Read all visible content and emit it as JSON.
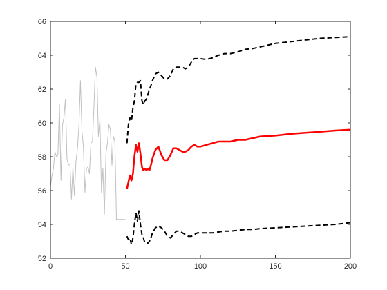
{
  "chart_data": {
    "type": "line",
    "title": "",
    "xlabel": "",
    "ylabel": "",
    "xlim": [
      0,
      200
    ],
    "ylim": [
      52,
      66
    ],
    "xticks": [
      0,
      50,
      100,
      150,
      200
    ],
    "yticks": [
      52,
      54,
      56,
      58,
      60,
      62,
      64,
      66
    ],
    "xtick_labels": [
      "0",
      "50",
      "100",
      "150",
      "200"
    ],
    "ytick_labels": [
      "52",
      "54",
      "56",
      "58",
      "60",
      "62",
      "64",
      "66"
    ],
    "grid": false,
    "legend": "none",
    "series": [
      {
        "role": "observed",
        "color": "#c0c0c0",
        "style": "solid",
        "x": [
          0,
          1,
          2,
          3,
          4,
          5,
          6,
          7,
          8,
          9,
          10,
          11,
          12,
          13,
          14,
          15,
          16,
          17,
          18,
          19,
          20,
          21,
          22,
          23,
          24,
          25,
          26,
          27,
          28,
          29,
          30,
          31,
          32,
          33,
          34,
          35,
          36,
          37,
          38,
          39,
          40,
          41,
          42,
          43,
          44,
          45,
          46,
          47,
          48,
          49,
          50
        ],
        "y": [
          56.2,
          56.9,
          57.3,
          58.3,
          58.0,
          58.1,
          61.1,
          56.6,
          59.9,
          60.3,
          61.4,
          57.9,
          57.5,
          57.6,
          55.5,
          57.4,
          55.7,
          57.7,
          58.5,
          59.8,
          62.5,
          59.5,
          58.6,
          55.9,
          57.3,
          57.4,
          57.0,
          58.8,
          58.9,
          60.9,
          63.3,
          62.7,
          59.2,
          60.2,
          55.9,
          57.3,
          54.6,
          58.2,
          58.8,
          59.9,
          59.6,
          57.5,
          59.2,
          58.9,
          54.3,
          54.3,
          54.3,
          54.3,
          54.3,
          54.3,
          54.3
        ]
      },
      {
        "role": "forecast",
        "color": "#ff0000",
        "style": "solid",
        "x": [
          51,
          52,
          53,
          54,
          55,
          56,
          57,
          58,
          59,
          60,
          61,
          62,
          63,
          64,
          65,
          66,
          67,
          68,
          70,
          72,
          74,
          76,
          78,
          80,
          82,
          84,
          86,
          88,
          90,
          92,
          94,
          96,
          98,
          100,
          104,
          108,
          112,
          116,
          120,
          125,
          130,
          135,
          140,
          150,
          160,
          170,
          180,
          190,
          200
        ],
        "y": [
          56.1,
          56.5,
          56.9,
          56.6,
          57.0,
          58.0,
          58.7,
          58.3,
          58.8,
          58.2,
          57.4,
          57.2,
          57.3,
          57.2,
          57.3,
          57.2,
          57.5,
          57.9,
          58.4,
          58.6,
          58.1,
          57.8,
          57.8,
          58.1,
          58.5,
          58.5,
          58.4,
          58.3,
          58.3,
          58.4,
          58.6,
          58.7,
          58.6,
          58.6,
          58.7,
          58.8,
          58.9,
          58.9,
          58.9,
          59.0,
          59.0,
          59.1,
          59.2,
          59.25,
          59.35,
          59.42,
          59.48,
          59.55,
          59.6
        ]
      },
      {
        "role": "upper-bound",
        "color": "#000000",
        "style": "dashed",
        "x": [
          51,
          52,
          53,
          54,
          55,
          56,
          57,
          58,
          59,
          60,
          61,
          62,
          63,
          64,
          65,
          66,
          67,
          68,
          70,
          72,
          74,
          76,
          78,
          80,
          82,
          84,
          86,
          88,
          90,
          92,
          94,
          96,
          98,
          100,
          104,
          108,
          112,
          116,
          120,
          125,
          130,
          135,
          140,
          150,
          160,
          170,
          180,
          190,
          200
        ],
        "y": [
          58.8,
          59.9,
          60.3,
          60.1,
          60.9,
          61.3,
          62.3,
          62.4,
          62.4,
          62.5,
          61.3,
          61.1,
          61.3,
          61.4,
          61.7,
          62.0,
          62.2,
          62.5,
          62.9,
          63.0,
          62.8,
          62.6,
          62.6,
          62.8,
          63.2,
          63.3,
          63.3,
          63.3,
          63.2,
          63.3,
          63.6,
          63.8,
          63.8,
          63.8,
          63.75,
          63.85,
          64.0,
          64.1,
          64.1,
          64.2,
          64.35,
          64.4,
          64.5,
          64.7,
          64.8,
          64.9,
          65.0,
          65.05,
          65.1
        ]
      },
      {
        "role": "lower-bound",
        "color": "#000000",
        "style": "dashed",
        "x": [
          51,
          52,
          53,
          54,
          55,
          56,
          57,
          58,
          59,
          60,
          61,
          62,
          63,
          64,
          65,
          66,
          67,
          68,
          70,
          72,
          74,
          76,
          78,
          80,
          82,
          84,
          86,
          88,
          90,
          92,
          94,
          96,
          98,
          100,
          104,
          108,
          112,
          116,
          120,
          125,
          130,
          135,
          140,
          150,
          160,
          170,
          180,
          190,
          200
        ],
        "y": [
          53.3,
          53.1,
          53.2,
          52.8,
          53.2,
          54.0,
          54.7,
          54.2,
          54.8,
          54.0,
          53.4,
          53.2,
          52.9,
          52.9,
          52.9,
          53.0,
          53.2,
          53.5,
          53.8,
          53.9,
          53.8,
          53.6,
          53.3,
          53.2,
          53.4,
          53.6,
          53.6,
          53.5,
          53.4,
          53.3,
          53.3,
          53.4,
          53.5,
          53.5,
          53.5,
          53.5,
          53.55,
          53.6,
          53.6,
          53.65,
          53.7,
          53.7,
          53.75,
          53.8,
          53.85,
          53.9,
          53.95,
          54.0,
          54.1
        ]
      }
    ]
  }
}
